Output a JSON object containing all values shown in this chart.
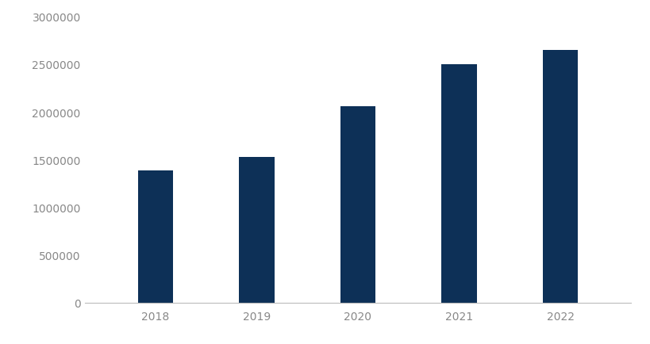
{
  "categories": [
    "2018",
    "2019",
    "2020",
    "2021",
    "2022"
  ],
  "values": [
    1390000,
    1530000,
    2060000,
    2500000,
    2650000
  ],
  "bar_color": "#0d3057",
  "background_color": "#ffffff",
  "ylim": [
    0,
    3000000
  ],
  "yticks": [
    0,
    500000,
    1000000,
    1500000,
    2000000,
    2500000,
    3000000
  ],
  "bar_width": 0.35,
  "tick_label_fontsize": 10,
  "tick_label_color": "#888888",
  "bottom_spine_color": "#bbbbbb"
}
